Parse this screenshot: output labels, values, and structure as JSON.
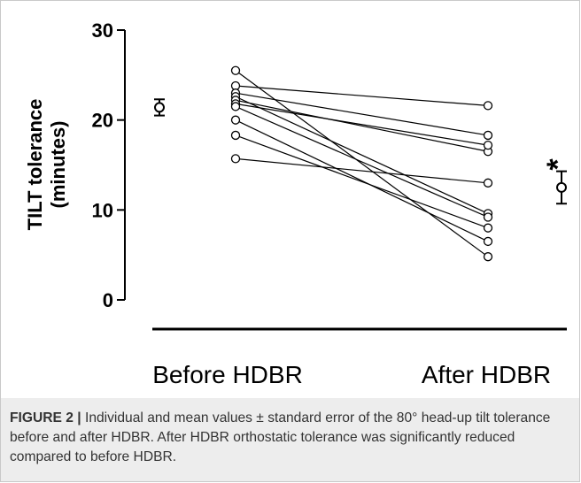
{
  "chart_data": {
    "type": "scatter",
    "ylabel_line1": "TILT tolerance",
    "ylabel_line2": "(minutes)",
    "xlabel_before": "Before HDBR",
    "xlabel_after": "After HDBR",
    "ylim": [
      0,
      30
    ],
    "yticks": [
      "0",
      "10",
      "20",
      "30"
    ],
    "individual_pairs": [
      {
        "before": 25.5,
        "after": 4.8
      },
      {
        "before": 23.8,
        "after": 21.6
      },
      {
        "before": 23.0,
        "after": 18.3
      },
      {
        "before": 22.6,
        "after": 9.6
      },
      {
        "before": 22.2,
        "after": 16.5
      },
      {
        "before": 21.8,
        "after": 17.2
      },
      {
        "before": 21.5,
        "after": 9.2
      },
      {
        "before": 20.0,
        "after": 6.5
      },
      {
        "before": 18.3,
        "after": 8.0
      },
      {
        "before": 15.7,
        "after": 13.0
      }
    ],
    "mean_before": {
      "mean": 21.4,
      "se": 0.9
    },
    "mean_after": {
      "mean": 12.5,
      "se": 1.8
    },
    "significance_marker": "*"
  },
  "caption": {
    "label": "FIGURE 2",
    "separator": "|",
    "text": "Individual and mean values ± standard error of the 80° head-up tilt tolerance before and after HDBR. After HDBR orthostatic tolerance was significantly reduced compared to before HDBR."
  }
}
